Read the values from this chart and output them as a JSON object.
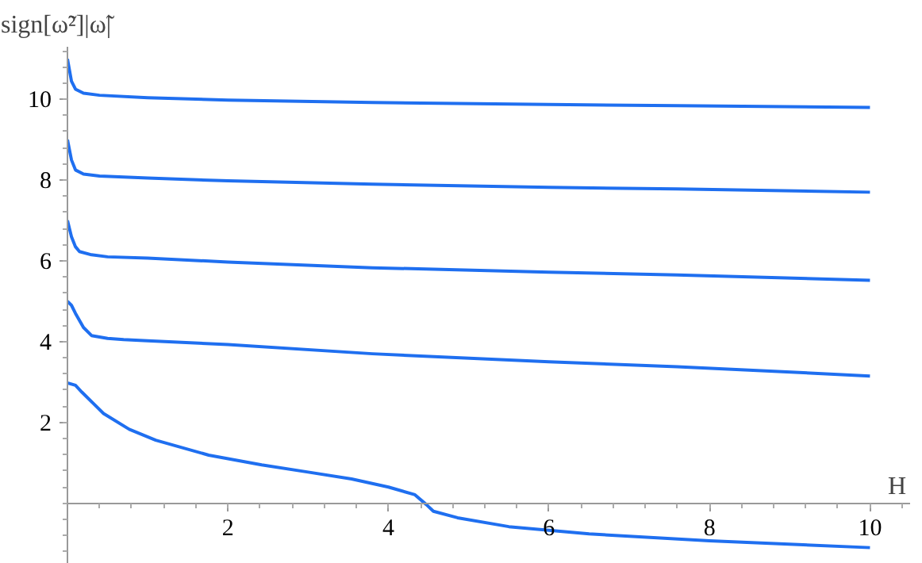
{
  "chart_data": {
    "type": "line",
    "xlabel": "H",
    "ylabel": "sign[ω̃²]|ω̃|",
    "xlim": [
      0,
      10.5
    ],
    "ylim": [
      -1.5,
      11.3
    ],
    "xticks": [
      2,
      4,
      6,
      8,
      10
    ],
    "yticks": [
      2,
      4,
      6,
      8,
      10
    ],
    "series": [
      {
        "color": "#1f6ff0",
        "x": [
          0,
          0.05,
          0.1,
          0.2,
          0.4,
          1,
          2,
          3.8,
          6,
          7.6,
          10
        ],
        "values": [
          11.0,
          10.45,
          10.25,
          10.15,
          10.1,
          10.04,
          9.98,
          9.92,
          9.87,
          9.84,
          9.8
        ]
      },
      {
        "color": "#1f6ff0",
        "x": [
          0,
          0.05,
          0.1,
          0.2,
          0.4,
          1,
          2,
          3.8,
          6,
          7.6,
          10
        ],
        "values": [
          9.0,
          8.5,
          8.25,
          8.15,
          8.1,
          8.05,
          7.98,
          7.9,
          7.82,
          7.78,
          7.7
        ]
      },
      {
        "color": "#1f6ff0",
        "x": [
          0,
          0.05,
          0.1,
          0.15,
          0.3,
          0.5,
          1,
          2,
          3.8,
          6,
          7.6,
          10
        ],
        "values": [
          7.0,
          6.6,
          6.35,
          6.23,
          6.15,
          6.1,
          6.07,
          5.97,
          5.83,
          5.72,
          5.65,
          5.52
        ]
      },
      {
        "color": "#1f6ff0",
        "x": [
          0,
          0.05,
          0.1,
          0.2,
          0.3,
          0.5,
          0.7,
          1,
          2,
          3.8,
          6,
          7.6,
          10
        ],
        "values": [
          5.0,
          4.9,
          4.7,
          4.35,
          4.15,
          4.08,
          4.05,
          4.02,
          3.93,
          3.7,
          3.5,
          3.38,
          3.15
        ]
      },
      {
        "color": "#1f6ff0",
        "x": [
          0,
          0.1,
          0.18,
          0.45,
          0.77,
          1.1,
          1.76,
          2.42,
          3.0,
          3.54,
          4.0,
          4.33,
          4.47,
          4.56,
          4.86,
          5.5,
          6.5,
          8,
          10
        ],
        "values": [
          2.98,
          2.92,
          2.75,
          2.22,
          1.83,
          1.56,
          1.19,
          0.95,
          0.77,
          0.6,
          0.4,
          0.21,
          -0.03,
          -0.2,
          -0.36,
          -0.58,
          -0.76,
          -0.93,
          -1.1
        ]
      }
    ]
  }
}
